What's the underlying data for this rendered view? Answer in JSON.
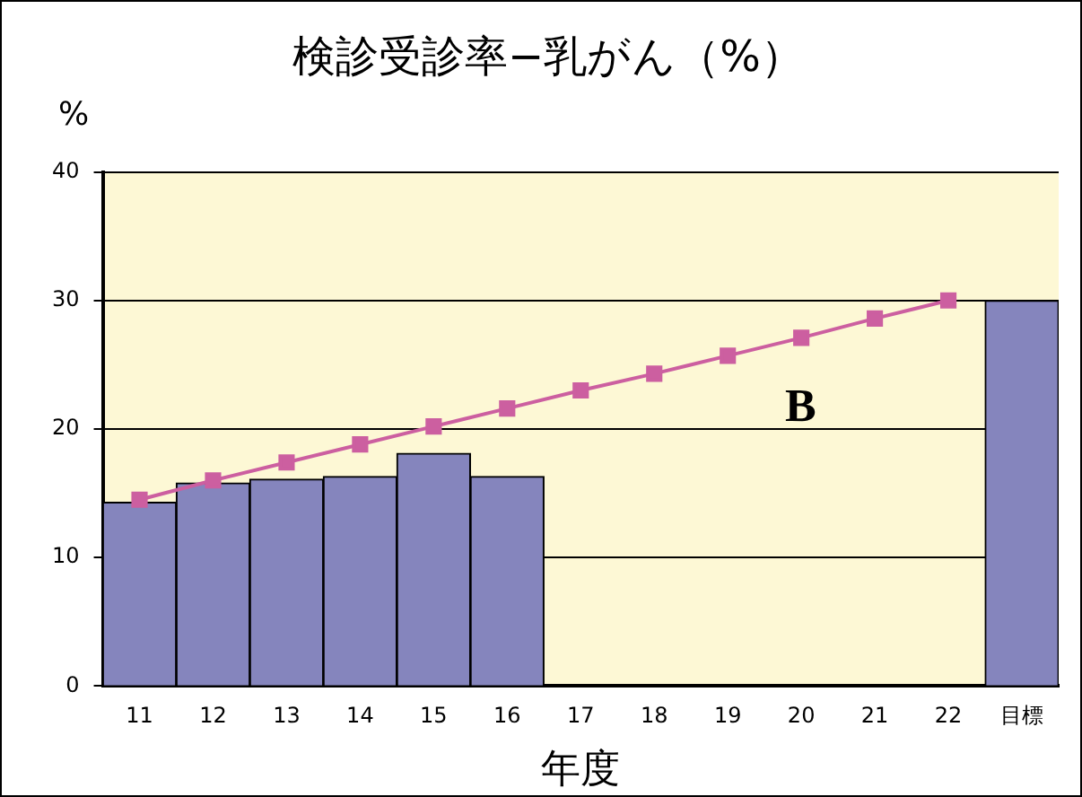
{
  "chart_data": {
    "type": "bar",
    "title": "検診受診率−乳がん（%）",
    "xlabel": "年度",
    "ylabel": "%",
    "categories": [
      "11",
      "12",
      "13",
      "14",
      "15",
      "16",
      "17",
      "18",
      "19",
      "20",
      "21",
      "22",
      "目標"
    ],
    "series": [
      {
        "color": "#8585bd",
        "values": [
          14.3,
          15.8,
          16.1,
          16.3,
          18.1,
          16.3,
          null,
          null,
          null,
          null,
          null,
          null,
          30
        ]
      },
      {
        "type": "line",
        "color": "#cc5fa0",
        "marker": "square",
        "values": [
          14.5,
          16.0,
          17.4,
          18.8,
          20.2,
          21.6,
          23.0,
          24.3,
          25.7,
          27.1,
          28.6,
          30.0,
          null
        ]
      }
    ],
    "annotations": [
      "B"
    ],
    "ylim": [
      0,
      40
    ],
    "yticks": [
      0,
      10,
      20,
      30,
      40
    ],
    "grid": "y",
    "legend": false
  }
}
